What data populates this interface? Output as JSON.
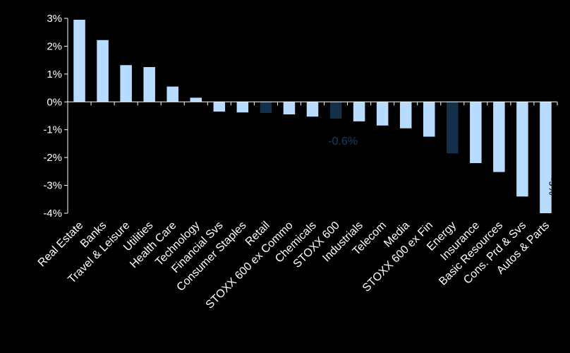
{
  "chart_data": {
    "type": "bar",
    "categories": [
      "Real Estate",
      "Banks",
      "Travel & Leisure",
      "Utilities",
      "Health Care",
      "Technology",
      "Financial Svs",
      "Consumer Staples",
      "Retail",
      "STOXX 600 ex Commo",
      "Chemicals",
      "STOXX 600",
      "Industrials",
      "Telecom",
      "Media",
      "STOXX 600 ex Fin",
      "Energy",
      "Insurance",
      "Basic Resources",
      "Cons. Prd & Svs",
      "Autos & Parts"
    ],
    "values": [
      2.95,
      2.22,
      1.32,
      1.25,
      0.55,
      0.15,
      -0.35,
      -0.38,
      -0.4,
      -0.45,
      -0.53,
      -0.6,
      -0.7,
      -0.85,
      -0.95,
      -1.25,
      -1.85,
      -2.2,
      -2.52,
      -3.4,
      -4.0
    ],
    "highlighted": [
      "Retail",
      "STOXX 600",
      "Energy"
    ],
    "ylim": [
      -4,
      3
    ],
    "yticks": [
      3,
      2,
      1,
      0,
      -1,
      -2,
      -3,
      -4
    ],
    "ytick_labels": [
      "3%",
      "2%",
      "1%",
      "0%",
      "-1%",
      "-2%",
      "-3%",
      "-4%"
    ],
    "annotations": [
      {
        "category": "STOXX 600",
        "text": "-0.6%"
      },
      {
        "category": "Autos & Parts",
        "text": "-9%"
      }
    ],
    "colors": {
      "bar": "#b7dcff",
      "highlight": "#132f4a",
      "axis": "#ffffff",
      "background": "#000000",
      "annotation_dark": "#1a3d60",
      "annotation_light": "#000000"
    },
    "grid": false,
    "title": "",
    "xlabel": "",
    "ylabel": ""
  }
}
